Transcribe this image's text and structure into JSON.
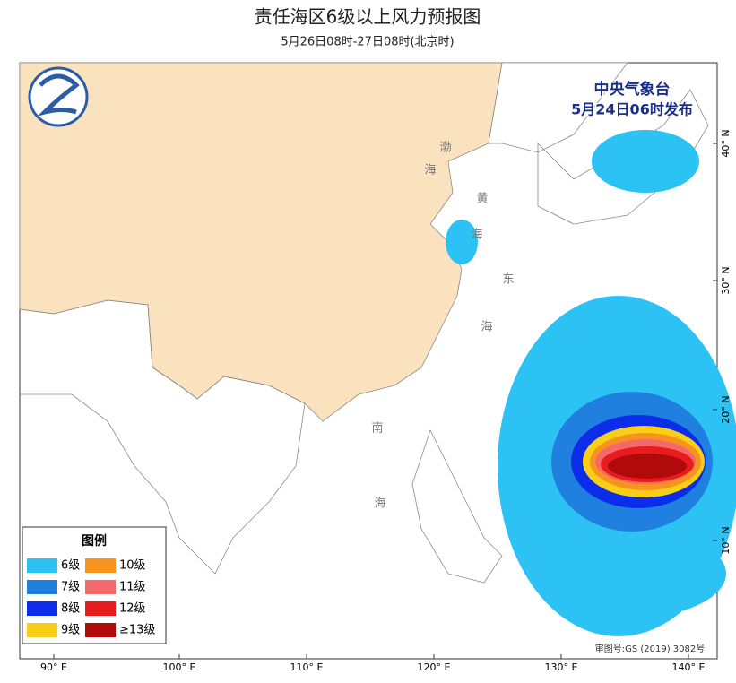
{
  "header": {
    "title": "责任海区6级以上风力预报图",
    "subtitle": "5月26日08时-27日08时(北京时)"
  },
  "stamp": {
    "agency": "中央气象台",
    "issued": "5月24日06时发布"
  },
  "legend": {
    "title": "图例",
    "items": [
      {
        "label": "6级",
        "color": "#2cc3f4"
      },
      {
        "label": "10级",
        "color": "#f7941d"
      },
      {
        "label": "7级",
        "color": "#1f80e0"
      },
      {
        "label": "11级",
        "color": "#f46a6a"
      },
      {
        "label": "8级",
        "color": "#0b2ce8"
      },
      {
        "label": "12级",
        "color": "#e81c1c"
      },
      {
        "label": "9级",
        "color": "#f8cf16"
      },
      {
        "label": "≥13级",
        "color": "#b00a0a"
      }
    ]
  },
  "axes": {
    "lon": [
      "90° E",
      "100° E",
      "110° E",
      "120° E",
      "130° E",
      "140° E"
    ],
    "lat": [
      "40° N",
      "30° N",
      "20° N",
      "10° N"
    ]
  },
  "sea_labels": [
    "渤",
    "海",
    "黄",
    "海",
    "东",
    "海",
    "南",
    "海"
  ],
  "approval": "审图号:GS (2019) 3082号"
}
